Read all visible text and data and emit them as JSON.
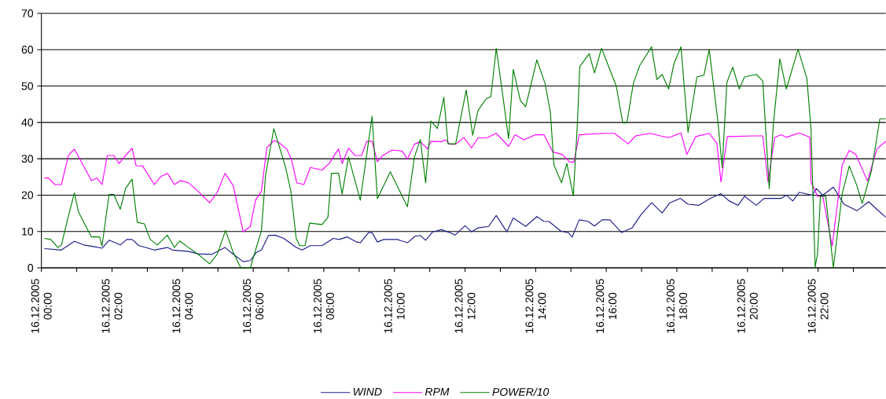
{
  "chart_data": {
    "type": "line",
    "xlim": [
      "2005-12-16T00:00",
      "2005-12-16T23:55"
    ],
    "ylim": [
      0,
      70
    ],
    "yticks": [
      0,
      10,
      20,
      30,
      40,
      50,
      60,
      70
    ],
    "xticks": [
      {
        "value": "2005-12-16T00:00",
        "label": "16.12.2005 00:00"
      },
      {
        "value": "2005-12-16T01:00",
        "label": null
      },
      {
        "value": "2005-12-16T02:00",
        "label": "16.12.2005 02:00"
      },
      {
        "value": "2005-12-16T03:00",
        "label": null
      },
      {
        "value": "2005-12-16T04:00",
        "label": "16.12.2005 04:00"
      },
      {
        "value": "2005-12-16T05:00",
        "label": null
      },
      {
        "value": "2005-12-16T06:00",
        "label": "16.12.2005 06:00"
      },
      {
        "value": "2005-12-16T07:00",
        "label": null
      },
      {
        "value": "2005-12-16T08:00",
        "label": "16.12.2005 08:00"
      },
      {
        "value": "2005-12-16T09:00",
        "label": null
      },
      {
        "value": "2005-12-16T10:00",
        "label": "16.12.2005 10:00"
      },
      {
        "value": "2005-12-16T11:00",
        "label": null
      },
      {
        "value": "2005-12-16T12:00",
        "label": "16.12.2005 12:00"
      },
      {
        "value": "2005-12-16T13:00",
        "label": null
      },
      {
        "value": "2005-12-16T14:00",
        "label": "16.12.2005 14:00"
      },
      {
        "value": "2005-12-16T15:00",
        "label": null
      },
      {
        "value": "2005-12-16T16:00",
        "label": "16.12.2005 16:00"
      },
      {
        "value": "2005-12-16T17:00",
        "label": null
      },
      {
        "value": "2005-12-16T18:00",
        "label": "16.12.2005 18:00"
      },
      {
        "value": "2005-12-16T19:00",
        "label": null
      },
      {
        "value": "2005-12-16T20:00",
        "label": "16.12.2005 20:00"
      },
      {
        "value": "2005-12-16T21:00",
        "label": null
      },
      {
        "value": "2005-12-16T22:00",
        "label": "16.12.2005 22:00"
      },
      {
        "value": "2005-12-16T23:00",
        "label": null
      }
    ],
    "grid": "y",
    "legend": "bottom",
    "marker": "none",
    "line_style": "solid",
    "series": [
      {
        "name": "WIND",
        "color": "#1c1c8c",
        "x": [
          "2005-12-16T00:05",
          "2005-12-16T00:34",
          "2005-12-16T00:56",
          "2005-12-16T01:12",
          "2005-12-16T01:30",
          "2005-12-16T01:43",
          "2005-12-16T01:55",
          "2005-12-16T02:14",
          "2005-12-16T02:25",
          "2005-12-16T02:34",
          "2005-12-16T02:46",
          "2005-12-16T03:12",
          "2005-12-16T03:34",
          "2005-12-16T03:43",
          "2005-12-16T04:10",
          "2005-12-16T04:28",
          "2005-12-16T04:50",
          "2005-12-16T05:12",
          "2005-12-16T05:28",
          "2005-12-16T05:43",
          "2005-12-16T05:55",
          "2005-12-16T06:05",
          "2005-12-16T06:14",
          "2005-12-16T06:26",
          "2005-12-16T06:37",
          "2005-12-16T06:52",
          "2005-12-16T07:13",
          "2005-12-16T07:23",
          "2005-12-16T07:37",
          "2005-12-16T07:57",
          "2005-12-16T08:16",
          "2005-12-16T08:26",
          "2005-12-16T08:40",
          "2005-12-16T08:56",
          "2005-12-16T09:02",
          "2005-12-16T09:16",
          "2005-12-16T09:22",
          "2005-12-16T09:31",
          "2005-12-16T09:42",
          "2005-12-16T10:05",
          "2005-12-16T10:22",
          "2005-12-16T10:35",
          "2005-12-16T10:44",
          "2005-12-16T10:53",
          "2005-12-16T11:05",
          "2005-12-16T11:20",
          "2005-12-16T11:34",
          "2005-12-16T11:43",
          "2005-12-16T12:00",
          "2005-12-16T12:11",
          "2005-12-16T12:22",
          "2005-12-16T12:40",
          "2005-12-16T12:53",
          "2005-12-16T13:11",
          "2005-12-16T13:22",
          "2005-12-16T13:43",
          "2005-12-16T14:02",
          "2005-12-16T14:14",
          "2005-12-16T14:23",
          "2005-12-16T14:43",
          "2005-12-16T14:56",
          "2005-12-16T15:02",
          "2005-12-16T15:14",
          "2005-12-16T15:29",
          "2005-12-16T15:40",
          "2005-12-16T15:53",
          "2005-12-16T16:06",
          "2005-12-16T16:26",
          "2005-12-16T16:44",
          "2005-12-16T16:59",
          "2005-12-16T17:17",
          "2005-12-16T17:35",
          "2005-12-16T17:48",
          "2005-12-16T18:06",
          "2005-12-16T18:19",
          "2005-12-16T18:37",
          "2005-12-16T18:57",
          "2005-12-16T19:15",
          "2005-12-16T19:28",
          "2005-12-16T19:44",
          "2005-12-16T19:55",
          "2005-12-16T20:15",
          "2005-12-16T20:28",
          "2005-12-16T20:57",
          "2005-12-16T21:06",
          "2005-12-16T21:17",
          "2005-12-16T21:28",
          "2005-12-16T21:50",
          "2005-12-16T21:57",
          "2005-12-16T22:08",
          "2005-12-16T22:26",
          "2005-12-16T22:44",
          "2005-12-16T23:06",
          "2005-12-16T23:26",
          "2005-12-16T23:40",
          "2005-12-16T23:55"
        ],
        "values": [
          5.3,
          4.9,
          7.3,
          6.3,
          5.8,
          5.4,
          7.6,
          6.3,
          7.8,
          7.8,
          6.1,
          4.9,
          5.6,
          4.9,
          4.5,
          3.8,
          3.7,
          5.6,
          3.5,
          1.7,
          2.0,
          4.2,
          4.9,
          8.9,
          9.0,
          8.1,
          5.6,
          4.9,
          6.1,
          6.1,
          8.1,
          7.8,
          8.5,
          7.1,
          6.9,
          9.7,
          9.7,
          7.1,
          7.8,
          7.8,
          6.9,
          8.7,
          8.9,
          7.6,
          9.9,
          10.5,
          9.7,
          9.0,
          11.6,
          9.9,
          11.0,
          11.4,
          14.4,
          9.9,
          13.7,
          11.4,
          14.1,
          12.8,
          12.7,
          10.1,
          9.6,
          8.5,
          13.2,
          12.8,
          11.5,
          13.2,
          13.2,
          9.7,
          11.0,
          14.6,
          17.9,
          15.1,
          17.9,
          19.1,
          17.5,
          17.2,
          19.1,
          20.4,
          18.5,
          17.2,
          19.7,
          17.2,
          19.1,
          19.1,
          20.0,
          18.4,
          20.8,
          20.0,
          21.8,
          20.0,
          22.2,
          17.5,
          15.7,
          18.2,
          16.1,
          13.9
        ]
      },
      {
        "name": "RPM",
        "color": "#ff00ff",
        "x": [
          "2005-12-16T00:05",
          "2005-12-16T00:12",
          "2005-12-16T00:23",
          "2005-12-16T00:34",
          "2005-12-16T00:46",
          "2005-12-16T00:56",
          "2005-12-16T01:08",
          "2005-12-16T01:25",
          "2005-12-16T01:34",
          "2005-12-16T01:43",
          "2005-12-16T01:52",
          "2005-12-16T02:03",
          "2005-12-16T02:12",
          "2005-12-16T02:21",
          "2005-12-16T02:34",
          "2005-12-16T02:41",
          "2005-12-16T02:52",
          "2005-12-16T03:12",
          "2005-12-16T03:23",
          "2005-12-16T03:34",
          "2005-12-16T03:46",
          "2005-12-16T03:56",
          "2005-12-16T04:10",
          "2005-12-16T04:26",
          "2005-12-16T04:46",
          "2005-12-16T04:59",
          "2005-12-16T05:12",
          "2005-12-16T05:26",
          "2005-12-16T05:43",
          "2005-12-16T05:55",
          "2005-12-16T06:04",
          "2005-12-16T06:14",
          "2005-12-16T06:23",
          "2005-12-16T06:35",
          "2005-12-16T06:43",
          "2005-12-16T06:57",
          "2005-12-16T07:05",
          "2005-12-16T07:14",
          "2005-12-16T07:26",
          "2005-12-16T07:37",
          "2005-12-16T07:57",
          "2005-12-16T08:09",
          "2005-12-16T08:25",
          "2005-12-16T08:31",
          "2005-12-16T08:42",
          "2005-12-16T08:53",
          "2005-12-16T09:04",
          "2005-12-16T09:13",
          "2005-12-16T09:22",
          "2005-12-16T09:31",
          "2005-12-16T09:40",
          "2005-12-16T09:56",
          "2005-12-16T10:13",
          "2005-12-16T10:22",
          "2005-12-16T10:34",
          "2005-12-16T10:44",
          "2005-12-16T10:56",
          "2005-12-16T11:02",
          "2005-12-16T11:20",
          "2005-12-16T11:27",
          "2005-12-16T11:34",
          "2005-12-16T11:44",
          "2005-12-16T11:58",
          "2005-12-16T12:11",
          "2005-12-16T12:22",
          "2005-12-16T12:38",
          "2005-12-16T12:53",
          "2005-12-16T13:14",
          "2005-12-16T13:25",
          "2005-12-16T13:40",
          "2005-12-16T14:00",
          "2005-12-16T14:14",
          "2005-12-16T14:29",
          "2005-12-16T14:45",
          "2005-12-16T14:58",
          "2005-12-16T15:05",
          "2005-12-16T15:14",
          "2005-12-16T15:56",
          "2005-12-16T16:14",
          "2005-12-16T16:37",
          "2005-12-16T16:50",
          "2005-12-16T17:15",
          "2005-12-16T17:32",
          "2005-12-16T17:46",
          "2005-12-16T18:07",
          "2005-12-16T18:17",
          "2005-12-16T18:32",
          "2005-12-16T18:55",
          "2005-12-16T19:08",
          "2005-12-16T19:15",
          "2005-12-16T19:24",
          "2005-12-16T19:26",
          "2005-12-16T20:13",
          "2005-12-16T20:26",
          "2005-12-16T20:35",
          "2005-12-16T20:46",
          "2005-12-16T20:57",
          "2005-12-16T21:06",
          "2005-12-16T21:28",
          "2005-12-16T21:46",
          "2005-12-16T21:48",
          "2005-12-16T21:59",
          "2005-12-16T22:08",
          "2005-12-16T22:24",
          "2005-12-16T22:41",
          "2005-12-16T22:53",
          "2005-12-16T23:04",
          "2005-12-16T23:24",
          "2005-12-16T23:40",
          "2005-12-16T23:55"
        ],
        "values": [
          24.7,
          24.7,
          22.9,
          22.9,
          30.9,
          32.7,
          29.1,
          24.0,
          24.7,
          22.9,
          30.9,
          30.9,
          28.7,
          30.5,
          32.9,
          28.1,
          28.0,
          22.9,
          25.1,
          26.0,
          22.9,
          24.0,
          23.4,
          21.1,
          17.9,
          20.8,
          26.0,
          22.6,
          9.9,
          11.4,
          18.6,
          21.1,
          33.0,
          35.0,
          34.5,
          32.7,
          29.8,
          23.4,
          22.9,
          27.6,
          26.9,
          28.7,
          32.7,
          28.7,
          32.9,
          30.9,
          30.9,
          34.8,
          34.8,
          29.2,
          30.9,
          32.4,
          32.1,
          29.9,
          34.0,
          34.7,
          32.7,
          34.8,
          34.7,
          35.2,
          34.0,
          34.0,
          35.9,
          33.0,
          35.7,
          35.8,
          37.0,
          33.4,
          36.6,
          35.2,
          36.6,
          36.6,
          31.9,
          31.2,
          29.1,
          29.1,
          36.6,
          37.0,
          37.0,
          34.1,
          36.3,
          37.0,
          36.3,
          35.8,
          37.1,
          31.2,
          36.1,
          37.0,
          34.2,
          23.6,
          34.1,
          36.1,
          36.3,
          36.3,
          23.6,
          35.8,
          36.6,
          35.9,
          37.1,
          35.9,
          23.6,
          19.7,
          19.7,
          6.0,
          28.3,
          32.3,
          31.2,
          23.9,
          32.7,
          34.8
        ]
      },
      {
        "name": "POWER/10",
        "color": "#008000",
        "x": [
          "2005-12-16T00:05",
          "2005-12-16T00:16",
          "2005-12-16T00:28",
          "2005-12-16T00:34",
          "2005-12-16T00:46",
          "2005-12-16T00:56",
          "2005-12-16T01:03",
          "2005-12-16T01:25",
          "2005-12-16T01:39",
          "2005-12-16T01:43",
          "2005-12-16T01:55",
          "2005-12-16T02:03",
          "2005-12-16T02:14",
          "2005-12-16T02:23",
          "2005-12-16T02:34",
          "2005-12-16T02:43",
          "2005-12-16T02:55",
          "2005-12-16T03:05",
          "2005-12-16T03:17",
          "2005-12-16T03:34",
          "2005-12-16T03:46",
          "2005-12-16T03:55",
          "2005-12-16T04:10",
          "2005-12-16T04:28",
          "2005-12-16T04:46",
          "2005-12-16T04:59",
          "2005-12-16T05:13",
          "2005-12-16T05:26",
          "2005-12-16T05:39",
          "2005-12-16T05:55",
          "2005-12-16T06:14",
          "2005-12-16T06:21",
          "2005-12-16T06:35",
          "2005-12-16T06:43",
          "2005-12-16T06:55",
          "2005-12-16T07:04",
          "2005-12-16T07:13",
          "2005-12-16T07:19",
          "2005-12-16T07:28",
          "2005-12-16T07:36",
          "2005-12-16T07:57",
          "2005-12-16T08:07",
          "2005-12-16T08:13",
          "2005-12-16T08:25",
          "2005-12-16T08:31",
          "2005-12-16T08:42",
          "2005-12-16T09:02",
          "2005-12-16T09:22",
          "2005-12-16T09:31",
          "2005-12-16T09:53",
          "2005-12-16T10:22",
          "2005-12-16T10:34",
          "2005-12-16T10:44",
          "2005-12-16T10:53",
          "2005-12-16T11:02",
          "2005-12-16T11:13",
          "2005-12-16T11:24",
          "2005-12-16T11:31",
          "2005-12-16T11:44",
          "2005-12-16T12:02",
          "2005-12-16T12:13",
          "2005-12-16T12:22",
          "2005-12-16T12:36",
          "2005-12-16T12:44",
          "2005-12-16T12:53",
          "2005-12-16T13:02",
          "2005-12-16T13:14",
          "2005-12-16T13:22",
          "2005-12-16T13:34",
          "2005-12-16T13:43",
          "2005-12-16T14:02",
          "2005-12-16T14:16",
          "2005-12-16T14:25",
          "2005-12-16T14:31",
          "2005-12-16T14:44",
          "2005-12-16T14:53",
          "2005-12-16T15:04",
          "2005-12-16T15:11",
          "2005-12-16T15:15",
          "2005-12-16T15:31",
          "2005-12-16T15:40",
          "2005-12-16T15:52",
          "2005-12-16T16:17",
          "2005-12-16T16:28",
          "2005-12-16T16:35",
          "2005-12-16T16:46",
          "2005-12-16T16:57",
          "2005-12-16T17:17",
          "2005-12-16T17:26",
          "2005-12-16T17:35",
          "2005-12-16T17:46",
          "2005-12-16T17:55",
          "2005-12-16T18:07",
          "2005-12-16T18:19",
          "2005-12-16T18:34",
          "2005-12-16T18:46",
          "2005-12-16T18:55",
          "2005-12-16T19:10",
          "2005-12-16T19:17",
          "2005-12-16T19:25",
          "2005-12-16T19:35",
          "2005-12-16T19:46",
          "2005-12-16T19:55",
          "2005-12-16T20:15",
          "2005-12-16T20:26",
          "2005-12-16T20:37",
          "2005-12-16T20:44",
          "2005-12-16T20:55",
          "2005-12-16T21:06",
          "2005-12-16T21:26",
          "2005-12-16T21:41",
          "2005-12-16T21:48",
          "2005-12-16T21:55",
          "2005-12-16T21:59",
          "2005-12-16T22:04",
          "2005-12-16T22:13",
          "2005-12-16T22:26",
          "2005-12-16T22:41",
          "2005-12-16T22:53",
          "2005-12-16T23:06",
          "2005-12-16T23:15",
          "2005-12-16T23:31",
          "2005-12-16T23:45",
          "2005-12-16T23:55"
        ],
        "values": [
          8.1,
          7.8,
          5.6,
          6.3,
          14.3,
          20.6,
          15.4,
          8.5,
          8.5,
          6.0,
          20.2,
          20.2,
          16.1,
          21.8,
          24.4,
          12.5,
          12.1,
          7.8,
          6.3,
          9.0,
          5.6,
          7.4,
          5.6,
          3.5,
          1.1,
          3.8,
          10.3,
          4.2,
          0,
          0,
          10.3,
          25.5,
          38.3,
          34.1,
          27.6,
          21.1,
          8.1,
          6.1,
          6.1,
          12.3,
          11.9,
          13.9,
          26.0,
          26.0,
          20.3,
          30.5,
          18.6,
          41.7,
          19.0,
          26.4,
          16.8,
          30.5,
          35.3,
          23.4,
          40.4,
          38.3,
          46.9,
          34.1,
          34.1,
          48.9,
          36.5,
          43.3,
          46.5,
          47.1,
          60.4,
          50.0,
          35.5,
          54.6,
          46.0,
          44.3,
          57.2,
          50.7,
          42.8,
          28.3,
          23.4,
          28.7,
          19.8,
          39.9,
          55.4,
          58.9,
          53.6,
          60.4,
          50.0,
          39.9,
          39.9,
          50.7,
          55.7,
          60.8,
          51.8,
          53.2,
          49.2,
          56.1,
          60.8,
          37.3,
          52.5,
          53.0,
          60.1,
          39.9,
          27.6,
          51.0,
          55.2,
          49.2,
          52.5,
          53.2,
          51.4,
          21.8,
          39.5,
          57.5,
          49.2,
          60.1,
          52.1,
          38.1,
          0.2,
          3.8,
          19.7,
          19.7,
          0,
          20.4,
          28.0,
          22.6,
          17.7,
          26.9,
          41.0,
          41.0
        ]
      }
    ]
  }
}
